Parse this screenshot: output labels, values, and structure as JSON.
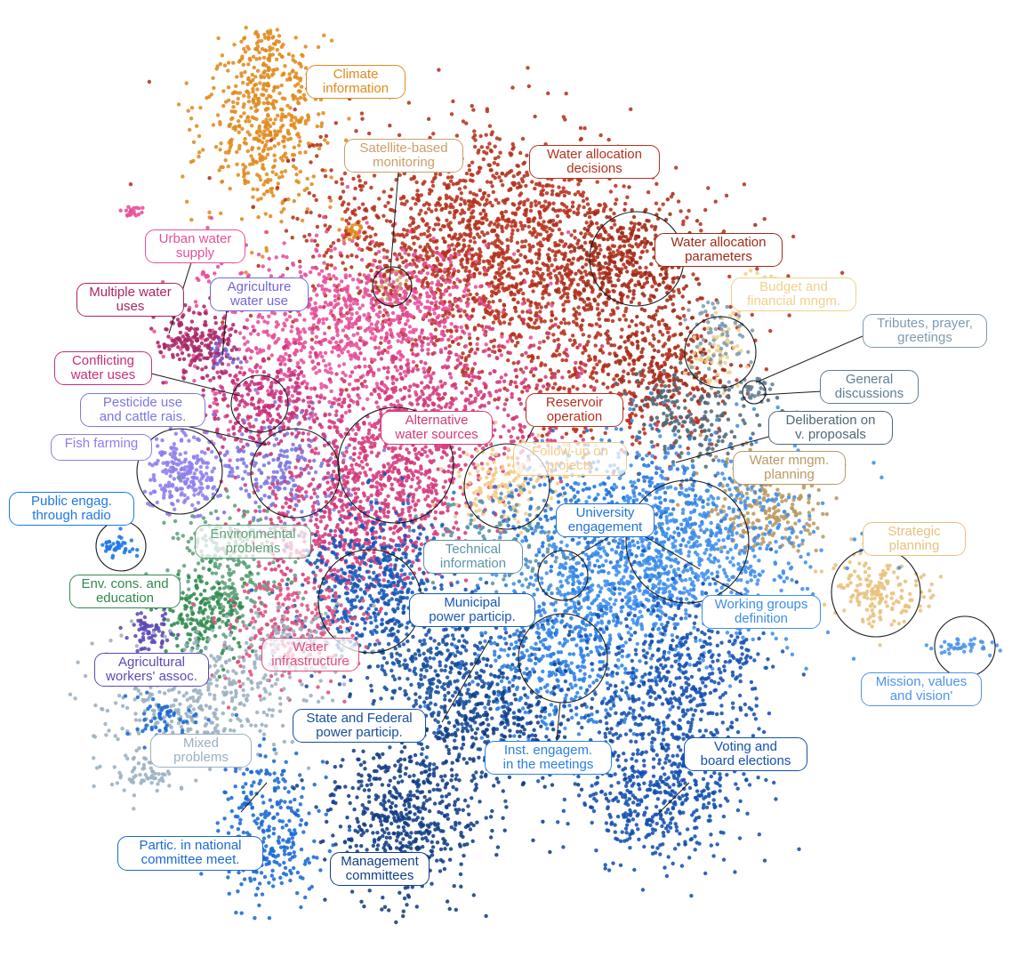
{
  "chart_data": {
    "type": "scatter",
    "title": "",
    "xlabel": "",
    "ylabel": "",
    "axes_visible": false,
    "grid": false,
    "legend": "none — clusters are identified by callout labels",
    "clusters": [
      {
        "key": "climate",
        "label": "Climate\ninformation",
        "color": "#E08A1E"
      },
      {
        "key": "satellite",
        "label": "Satellite-based\nmonitoring",
        "color": "#C9A06A"
      },
      {
        "key": "alloc_decisions",
        "label": "Water allocation\ndecisions",
        "color": "#B5321E"
      },
      {
        "key": "alloc_params",
        "label": "Water allocation\nparameters",
        "color": "#9E2A18"
      },
      {
        "key": "budget",
        "label": "Budget and\nfinancial mngm.",
        "color": "#F0D28C"
      },
      {
        "key": "tributes",
        "label": "Tributes, prayer,\ngreetings",
        "color": "#7E9BAF"
      },
      {
        "key": "general",
        "label": "General\ndiscussions",
        "color": "#5E7F93"
      },
      {
        "key": "deliberation",
        "label": "Deliberation on\nv. proposals",
        "color": "#4F6878"
      },
      {
        "key": "urban",
        "label": "Urban water\nsupply",
        "color": "#E6509A"
      },
      {
        "key": "multiple",
        "label": "Multiple water\nuses",
        "color": "#A82866"
      },
      {
        "key": "agri_use",
        "label": "Agriculture\nwater use",
        "color": "#7267D8"
      },
      {
        "key": "conflicting",
        "label": "Conflicting\nwater uses",
        "color": "#C5307A"
      },
      {
        "key": "pesticide",
        "label": "Pesticide use\nand cattle rais.",
        "color": "#7A78E0"
      },
      {
        "key": "fish",
        "label": "Fish farming",
        "color": "#8C7EF0"
      },
      {
        "key": "alt_sources",
        "label": "Alternative\nwater sources",
        "color": "#D43A7C"
      },
      {
        "key": "reservoir",
        "label": "Reservoir\noperation",
        "color": "#B92E1C"
      },
      {
        "key": "followup",
        "label": "Follow-up on\nprojects",
        "color": "#F2CC86"
      },
      {
        "key": "wm_planning",
        "label": "Water mngm.\nplanning",
        "color": "#B89A62"
      },
      {
        "key": "radio",
        "label": "Public engag.\nthrough radio",
        "color": "#1E78E8"
      },
      {
        "key": "university",
        "label": "University\nengagement",
        "color": "#1F72D8"
      },
      {
        "key": "environmental",
        "label": "Environmental\nproblems",
        "color": "#5FA07A"
      },
      {
        "key": "technical",
        "label": "Technical\ninformation",
        "color": "#5B93A8"
      },
      {
        "key": "strategic",
        "label": "Strategic\nplanning",
        "color": "#E8C27E"
      },
      {
        "key": "env_edu",
        "label": "Env. cons. and\neducation",
        "color": "#2F8A4C"
      },
      {
        "key": "municipal",
        "label": "Municipal\npower particip.",
        "color": "#1658B8"
      },
      {
        "key": "working",
        "label": "Working groups\ndefinition",
        "color": "#3E8EEC"
      },
      {
        "key": "water_infra",
        "label": "Water\ninfrastructure",
        "color": "#E0507F"
      },
      {
        "key": "agri_workers",
        "label": "Agricultural\nworkers' assoc.",
        "color": "#5E48B8"
      },
      {
        "key": "mission",
        "label": "Mission, values\nand vision'",
        "color": "#4C94EA"
      },
      {
        "key": "state_fed",
        "label": "State and Federal\npower particip.",
        "color": "#164E9E"
      },
      {
        "key": "mixed",
        "label": "Mixed\nproblems",
        "color": "#9AB0C0"
      },
      {
        "key": "inst_engag",
        "label": "Inst. engagem.\nin the meetings",
        "color": "#2B80E6"
      },
      {
        "key": "voting",
        "label": "Voting and\nboard elections",
        "color": "#1450B0"
      },
      {
        "key": "national",
        "label": "Partic. in national\ncommittee meet.",
        "color": "#1A6AD4"
      },
      {
        "key": "management",
        "label": "Management\ncommittees",
        "color": "#123E86"
      }
    ]
  }
}
